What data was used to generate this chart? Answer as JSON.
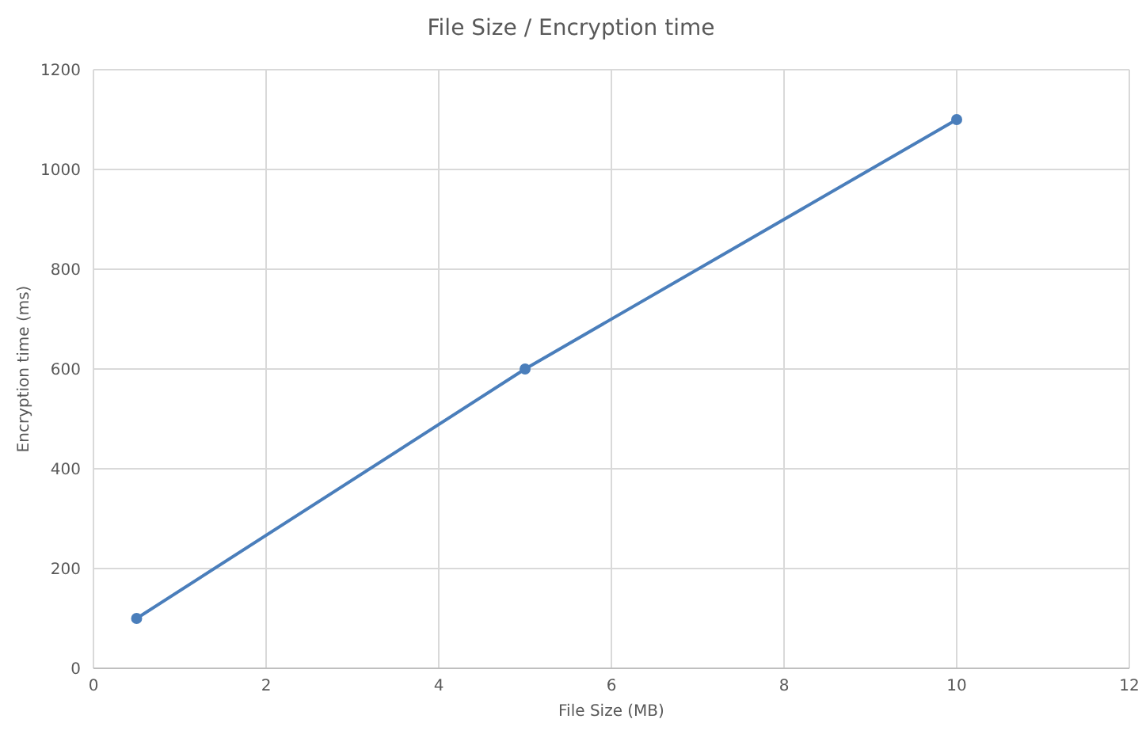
{
  "chart_data": {
    "type": "line",
    "title": "File Size / Encryption time",
    "xlabel": "File Size (MB)",
    "ylabel": "Encryption time (ms)",
    "x": [
      0.5,
      5,
      10
    ],
    "series": [
      {
        "color": "#4a7ebb",
        "values": [
          100,
          600,
          1100
        ]
      }
    ],
    "xlim": [
      0,
      12
    ],
    "xticks": [
      0,
      2,
      4,
      6,
      8,
      10,
      12
    ],
    "ylim": [
      0,
      1200
    ],
    "yticks": [
      0,
      200,
      400,
      600,
      800,
      1000,
      1200
    ],
    "grid": true,
    "marker": "circle",
    "line_style": "solid"
  }
}
